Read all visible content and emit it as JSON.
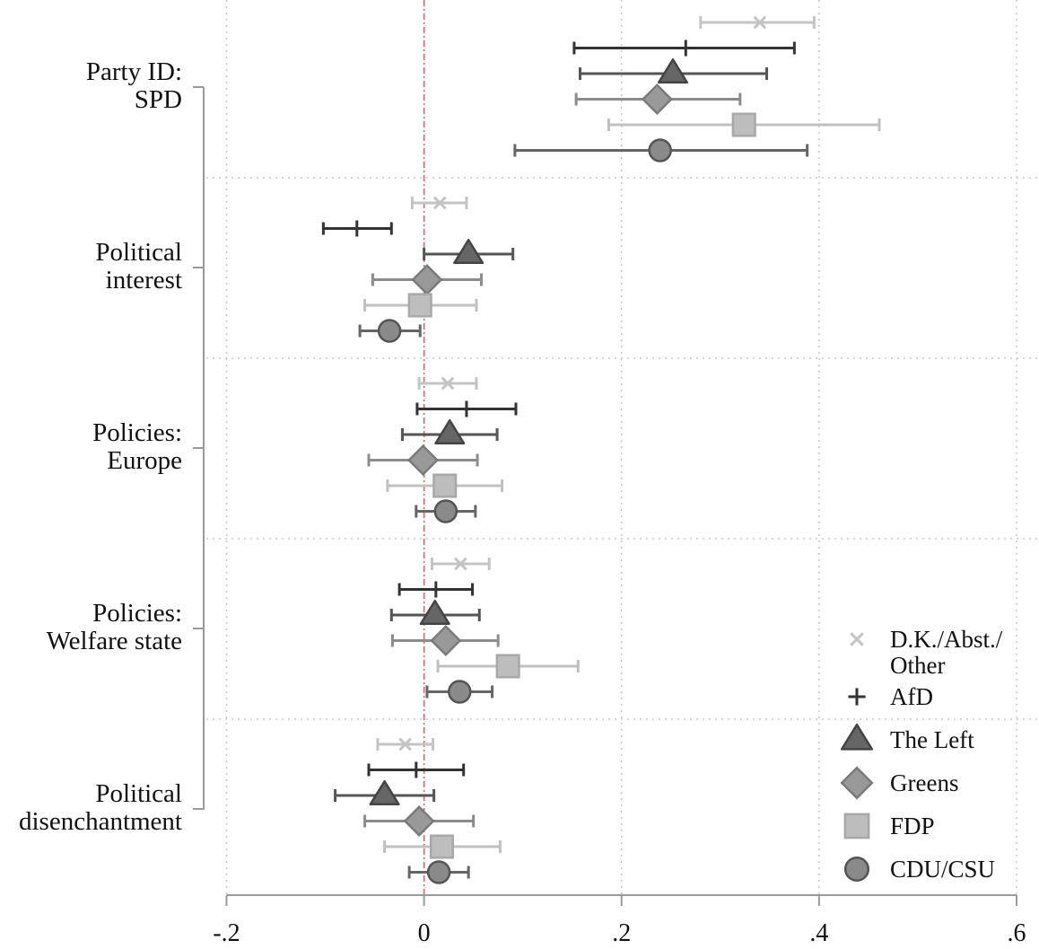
{
  "chart_data": {
    "type": "coefficient-plot",
    "title": "",
    "xlabel": "",
    "ylabel": "",
    "xlim": [
      -0.2,
      0.6
    ],
    "x_ticks": [
      -0.2,
      0,
      0.2,
      0.4,
      0.6
    ],
    "x_tick_labels": [
      "-.2",
      "0",
      ".2",
      ".4",
      ".6"
    ],
    "grid": true,
    "reference_line": {
      "x": 0,
      "style": "dashed",
      "color": "#e06060"
    },
    "legend_position": "bottom-right",
    "groups": [
      {
        "label_lines": [
          "Party ID:",
          "SPD"
        ]
      },
      {
        "label_lines": [
          "Political",
          "interest"
        ]
      },
      {
        "label_lines": [
          "Policies:",
          "Europe"
        ]
      },
      {
        "label_lines": [
          "Policies:",
          "Welfare state"
        ]
      },
      {
        "label_lines": [
          "Political",
          "disenchantment"
        ]
      }
    ],
    "series": [
      {
        "name": "D.K./Abst./Other",
        "legend_lines": [
          "D.K./Abst./",
          "Other"
        ],
        "marker": "x",
        "color": "#c8c8c8",
        "points": [
          {
            "estimate": 0.34,
            "ci": [
              0.28,
              0.395
            ]
          },
          {
            "estimate": 0.016,
            "ci": [
              -0.012,
              0.043
            ]
          },
          {
            "estimate": 0.024,
            "ci": [
              -0.005,
              0.053
            ]
          },
          {
            "estimate": 0.037,
            "ci": [
              0.008,
              0.066
            ]
          },
          {
            "estimate": -0.019,
            "ci": [
              -0.047,
              0.009
            ]
          }
        ]
      },
      {
        "name": "AfD",
        "legend_lines": [
          "AfD"
        ],
        "marker": "plus",
        "color": "#333333",
        "points": [
          {
            "estimate": 0.265,
            "ci": [
              0.152,
              0.375
            ]
          },
          {
            "estimate": -0.068,
            "ci": [
              -0.102,
              -0.033
            ]
          },
          {
            "estimate": 0.043,
            "ci": [
              -0.007,
              0.093
            ]
          },
          {
            "estimate": 0.012,
            "ci": [
              -0.025,
              0.049
            ]
          },
          {
            "estimate": -0.008,
            "ci": [
              -0.056,
              0.04
            ]
          }
        ]
      },
      {
        "name": "The Left",
        "legend_lines": [
          "The Left"
        ],
        "marker": "triangle",
        "color": "#666666",
        "points": [
          {
            "estimate": 0.252,
            "ci": [
              0.158,
              0.347
            ]
          },
          {
            "estimate": 0.045,
            "ci": [
              0.0,
              0.09
            ]
          },
          {
            "estimate": 0.026,
            "ci": [
              -0.022,
              0.074
            ]
          },
          {
            "estimate": 0.011,
            "ci": [
              -0.033,
              0.056
            ]
          },
          {
            "estimate": -0.04,
            "ci": [
              -0.09,
              0.01
            ]
          }
        ]
      },
      {
        "name": "Greens",
        "legend_lines": [
          "Greens"
        ],
        "marker": "diamond",
        "color": "#999999",
        "points": [
          {
            "estimate": 0.236,
            "ci": [
              0.154,
              0.32
            ]
          },
          {
            "estimate": 0.003,
            "ci": [
              -0.052,
              0.058
            ]
          },
          {
            "estimate": -0.001,
            "ci": [
              -0.056,
              0.054
            ]
          },
          {
            "estimate": 0.022,
            "ci": [
              -0.032,
              0.075
            ]
          },
          {
            "estimate": -0.005,
            "ci": [
              -0.06,
              0.05
            ]
          }
        ]
      },
      {
        "name": "FDP",
        "legend_lines": [
          "FDP"
        ],
        "marker": "square",
        "color": "#bdbdbd",
        "points": [
          {
            "estimate": 0.324,
            "ci": [
              0.187,
              0.461
            ]
          },
          {
            "estimate": -0.004,
            "ci": [
              -0.06,
              0.053
            ]
          },
          {
            "estimate": 0.021,
            "ci": [
              -0.037,
              0.079
            ]
          },
          {
            "estimate": 0.085,
            "ci": [
              0.014,
              0.156
            ]
          },
          {
            "estimate": 0.018,
            "ci": [
              -0.04,
              0.077
            ]
          }
        ]
      },
      {
        "name": "CDU/CSU",
        "legend_lines": [
          "CDU/CSU"
        ],
        "marker": "circle",
        "color": "#8a8a8a",
        "points": [
          {
            "estimate": 0.239,
            "ci": [
              0.092,
              0.388
            ]
          },
          {
            "estimate": -0.035,
            "ci": [
              -0.065,
              -0.004
            ]
          },
          {
            "estimate": 0.022,
            "ci": [
              -0.008,
              0.052
            ]
          },
          {
            "estimate": 0.036,
            "ci": [
              0.003,
              0.069
            ]
          },
          {
            "estimate": 0.015,
            "ci": [
              -0.015,
              0.045
            ]
          }
        ]
      }
    ]
  }
}
